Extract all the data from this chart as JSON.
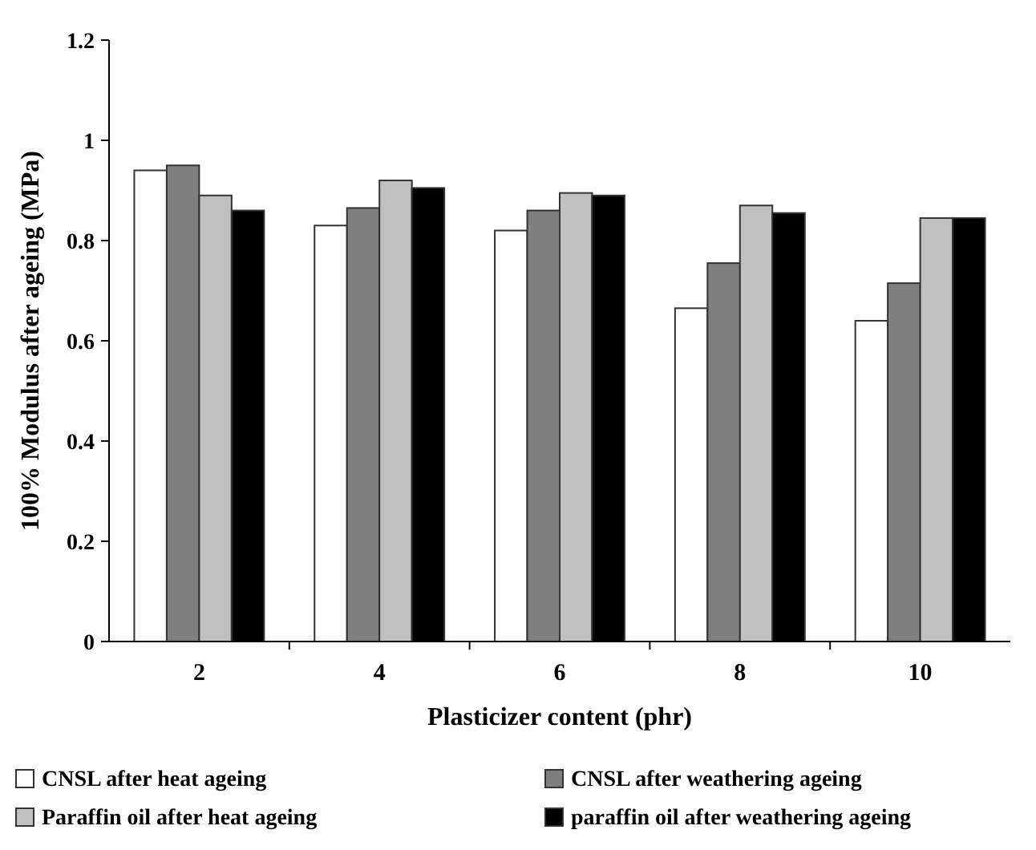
{
  "chart_data": {
    "type": "bar",
    "xlabel": "Plasticizer content (phr)",
    "ylabel": "100% Modulus after ageing  (MPa)",
    "categories": [
      "2",
      "4",
      "6",
      "8",
      "10"
    ],
    "series": [
      {
        "name": "CNSL after heat ageing",
        "color": "#ffffff",
        "values": [
          0.94,
          0.83,
          0.82,
          0.665,
          0.64
        ]
      },
      {
        "name": "CNSL after weathering ageing",
        "color": "#7f7f7f",
        "values": [
          0.95,
          0.865,
          0.86,
          0.755,
          0.715
        ]
      },
      {
        "name": "Paraffin oil after heat ageing",
        "color": "#c0c0c0",
        "values": [
          0.89,
          0.92,
          0.895,
          0.87,
          0.845
        ]
      },
      {
        "name": "paraffin oil after weathering ageing",
        "color": "#000000",
        "values": [
          0.86,
          0.905,
          0.89,
          0.855,
          0.845
        ]
      }
    ],
    "ylim": [
      0,
      1.2
    ],
    "yticks": [
      0,
      0.2,
      0.4,
      0.6,
      0.8,
      1,
      1.2
    ],
    "grid": false,
    "legend": "bottom"
  }
}
